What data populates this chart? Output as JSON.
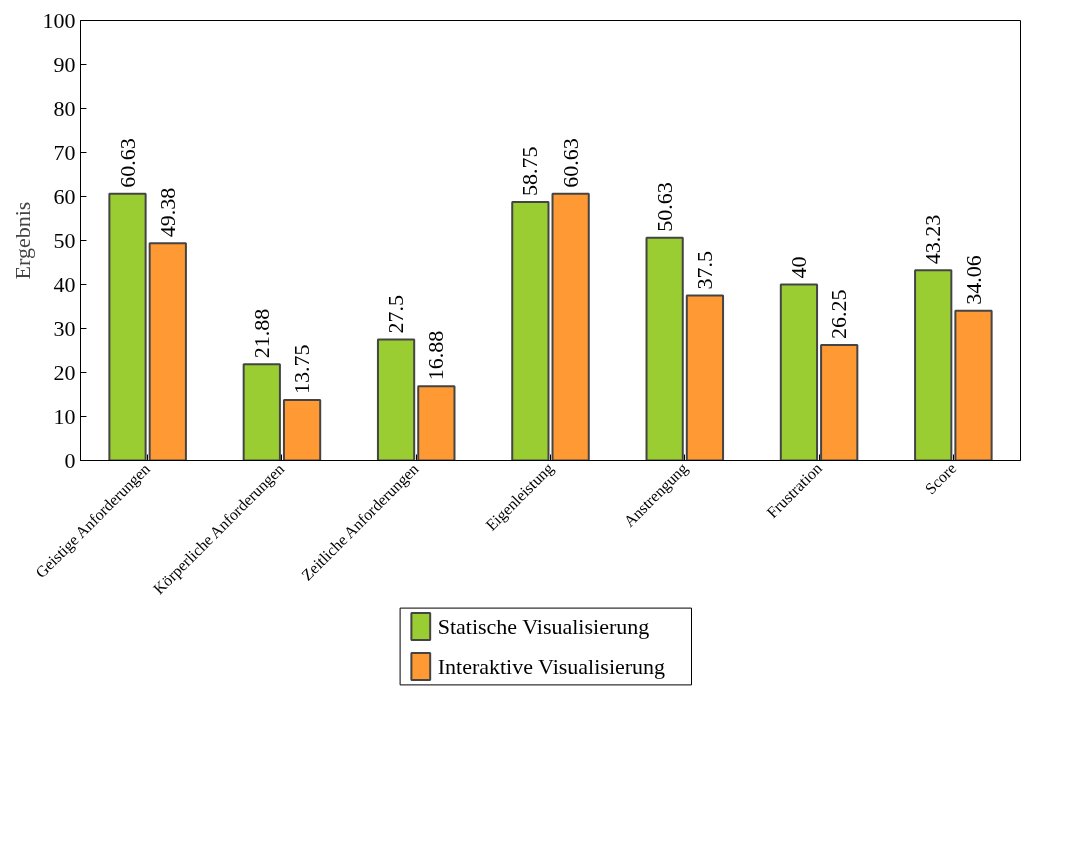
{
  "chart_data": {
    "type": "bar",
    "ylabel": "Ergebnis",
    "categories": [
      "Geistige Anforderungen",
      "Körperliche Anforderungen",
      "Zeitliche Anforderungen",
      "Eigenleistung",
      "Anstrengung",
      "Frustration",
      "Score"
    ],
    "series": [
      {
        "name": "Statische Visualisierung",
        "color": "#9acd32",
        "values": [
          60.63,
          21.88,
          27.5,
          58.75,
          50.63,
          40,
          43.23
        ]
      },
      {
        "name": "Interaktive Visualisierung",
        "color": "#ff9933",
        "values": [
          49.38,
          13.75,
          16.88,
          60.63,
          37.5,
          26.25,
          34.06
        ]
      }
    ],
    "ylim": [
      0,
      100
    ],
    "yticks": [
      0,
      10,
      20,
      30,
      40,
      50,
      60,
      70,
      80,
      90,
      100
    ],
    "data_labels": true,
    "grid": false,
    "legend": "bottom"
  }
}
